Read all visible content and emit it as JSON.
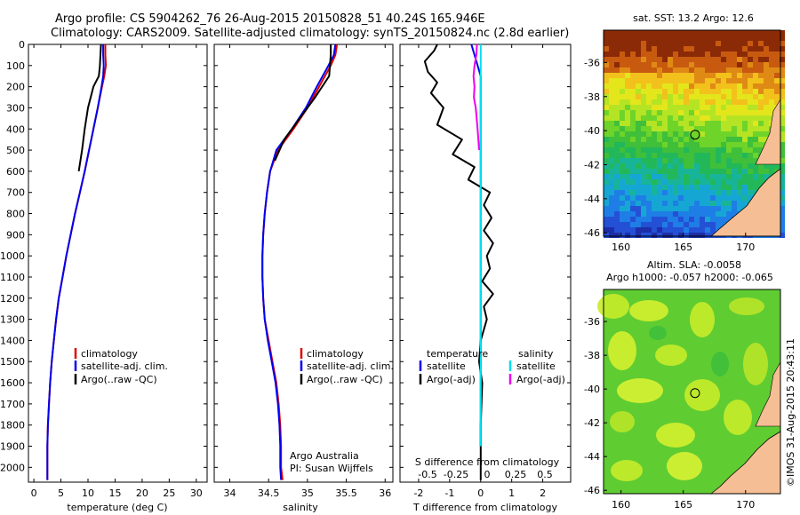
{
  "title": {
    "line1": "Argo profile: CS 5904262_76 26-Aug-2015 20150828_51 40.24S 165.946E",
    "line2": "Climatology: CARS2009. Satellite-adjusted climatology: synTS_20150824.nc (2.8d earlier)"
  },
  "credit": "©IMOS 31-Aug-2015 20:43:11",
  "legend_labels": {
    "climatology": "climatology",
    "satellite_adj": "satellite-adj. clim.",
    "argo": "Argo(..raw -QC)"
  },
  "diff_legend": {
    "temperature": "temperature",
    "salinity": "salinity",
    "satellite": "satellite",
    "argo_adj": "Argo(-adj)"
  },
  "owner": {
    "org": "Argo Australia",
    "pi": "PI: Susan Wijffels"
  },
  "colors": {
    "climatology": "#dd0000",
    "satellite": "#0000ee",
    "argo": "#000000",
    "sal_sat": "#00e0ee",
    "sal_argo": "#ee00ee"
  },
  "chart_data": [
    {
      "type": "line",
      "xlabel": "temperature (deg C)",
      "xlim": [
        -1,
        32
      ],
      "xticks": [
        0,
        5,
        10,
        15,
        20,
        25,
        30
      ],
      "ylim": [
        2070,
        0
      ],
      "yticks": [
        0,
        100,
        200,
        300,
        400,
        500,
        600,
        700,
        800,
        900,
        1000,
        1100,
        1200,
        1300,
        1400,
        1500,
        1600,
        1700,
        1800,
        1900,
        2000
      ],
      "series": [
        {
          "name": "climatology",
          "color": "#dd0000",
          "x": [
            13.2,
            13.2,
            13.3,
            13.0,
            12.6,
            11.8,
            11.0,
            10.2,
            9.4,
            8.5,
            7.6,
            6.8,
            6.0,
            5.3,
            4.6,
            4.1,
            3.7,
            3.3,
            3.0,
            2.8,
            2.6,
            2.5,
            2.5
          ],
          "y": [
            0,
            50,
            100,
            150,
            200,
            300,
            400,
            500,
            600,
            700,
            800,
            900,
            1000,
            1100,
            1200,
            1300,
            1400,
            1500,
            1600,
            1700,
            1800,
            1900,
            2060
          ]
        },
        {
          "name": "satellite-adj. clim.",
          "color": "#0000ee",
          "x": [
            12.8,
            12.8,
            12.9,
            12.8,
            12.5,
            11.8,
            11.0,
            10.2,
            9.4,
            8.5,
            7.6,
            6.8,
            6.0,
            5.3,
            4.6,
            4.1,
            3.7,
            3.3,
            3.0,
            2.8,
            2.6,
            2.5,
            2.5
          ],
          "y": [
            0,
            50,
            100,
            150,
            200,
            300,
            400,
            500,
            600,
            700,
            800,
            900,
            1000,
            1100,
            1200,
            1300,
            1400,
            1500,
            1600,
            1700,
            1800,
            1900,
            2060
          ]
        },
        {
          "name": "Argo(..raw -QC)",
          "color": "#000000",
          "x": [
            12.4,
            12.3,
            12.2,
            12.0,
            11.0,
            10.0,
            9.4,
            8.9,
            8.3
          ],
          "y": [
            0,
            50,
            100,
            150,
            200,
            300,
            400,
            500,
            600
          ]
        }
      ]
    },
    {
      "type": "line",
      "xlabel": "salinity",
      "xlim": [
        33.8,
        36.1
      ],
      "xticks": [
        34,
        34.5,
        35,
        35.5,
        36
      ],
      "ylim": [
        2070,
        0
      ],
      "series": [
        {
          "name": "climatology",
          "color": "#dd0000",
          "x": [
            35.38,
            35.36,
            35.3,
            35.15,
            35.0,
            34.82,
            34.62,
            34.52,
            34.48,
            34.45,
            34.43,
            34.42,
            34.42,
            34.43,
            34.45,
            34.5,
            34.55,
            34.6,
            34.63,
            34.65,
            34.66,
            34.66,
            34.68
          ],
          "y": [
            0,
            50,
            100,
            200,
            300,
            400,
            500,
            600,
            700,
            800,
            900,
            1000,
            1100,
            1200,
            1300,
            1400,
            1500,
            1600,
            1700,
            1800,
            1900,
            2000,
            2060
          ]
        },
        {
          "name": "satellite-adj. clim.",
          "color": "#0000ee",
          "x": [
            35.36,
            35.34,
            35.27,
            35.12,
            34.98,
            34.8,
            34.6,
            34.52,
            34.48,
            34.45,
            34.43,
            34.42,
            34.42,
            34.43,
            34.45,
            34.49,
            34.54,
            34.59,
            34.62,
            34.64,
            34.65,
            34.65,
            34.66
          ],
          "y": [
            0,
            50,
            100,
            200,
            300,
            400,
            500,
            600,
            700,
            800,
            900,
            1000,
            1100,
            1200,
            1300,
            1400,
            1500,
            1600,
            1700,
            1800,
            1900,
            2000,
            2060
          ]
        },
        {
          "name": "Argo(..raw -QC)",
          "color": "#000000",
          "x": [
            35.3,
            35.3,
            35.28,
            35.1,
            34.9,
            34.7,
            34.58
          ],
          "y": [
            0,
            50,
            150,
            250,
            350,
            450,
            550
          ]
        }
      ]
    },
    {
      "type": "line",
      "xlabel": "T difference from climatology",
      "xlabel_top": "S difference from climatology",
      "xlim": [
        -2.6,
        2.9
      ],
      "xticks": [
        -2,
        -1,
        0,
        1,
        2
      ],
      "xticks_top": [
        "-0.5",
        "-0.25",
        "0",
        "0.25",
        "0.5"
      ],
      "ylim": [
        2070,
        0
      ],
      "series": [
        {
          "name": "temperature satellite",
          "color": "#0000ee",
          "x": [
            -0.3,
            -0.2,
            -0.1,
            0,
            0,
            0,
            0,
            0,
            0,
            0,
            0,
            0,
            0,
            0,
            0,
            0,
            0,
            0,
            0,
            0,
            0,
            0
          ],
          "y": [
            0,
            50,
            100,
            150,
            200,
            300,
            400,
            500,
            600,
            700,
            800,
            900,
            1000,
            1100,
            1200,
            1300,
            1400,
            1500,
            1600,
            1700,
            1800,
            1900
          ]
        },
        {
          "name": "temperature Argo(-adj)",
          "color": "#000000",
          "x": [
            -1.4,
            -1.5,
            -1.8,
            -1.7,
            -1.4,
            -1.6,
            -1.2,
            -1.4,
            -0.6,
            -0.9,
            -0.2,
            -0.4,
            0.3,
            0.1,
            0.35,
            0.1,
            0.4,
            0.2,
            0.3,
            0.05,
            0.4,
            0.1,
            0.2,
            0,
            -0.05,
            0.05,
            0,
            0
          ],
          "y": [
            0,
            30,
            80,
            130,
            180,
            230,
            300,
            380,
            450,
            520,
            580,
            640,
            700,
            760,
            820,
            880,
            940,
            1000,
            1060,
            1120,
            1180,
            1240,
            1300,
            1400,
            1500,
            1600,
            1800,
            2060
          ]
        },
        {
          "name": "salinity satellite",
          "color": "#00e0ee",
          "x": [
            0,
            0,
            0,
            0,
            0,
            0,
            0,
            0,
            0,
            0,
            0,
            0,
            0,
            0,
            0,
            0,
            0,
            0,
            0,
            0,
            0,
            0
          ],
          "y": [
            0,
            50,
            100,
            150,
            200,
            300,
            400,
            500,
            600,
            700,
            800,
            900,
            1000,
            1100,
            1200,
            1300,
            1400,
            1500,
            1600,
            1700,
            1800,
            1900
          ]
        },
        {
          "name": "salinity Argo(-adj)",
          "color": "#ee00ee",
          "x": [
            -0.12,
            -0.14,
            -0.2,
            -0.23,
            -0.2,
            -0.22,
            -0.16,
            -0.1,
            -0.05
          ],
          "y": [
            0,
            50,
            100,
            150,
            200,
            250,
            300,
            400,
            500
          ]
        }
      ]
    },
    {
      "type": "heatmap",
      "title": "sat. SST: 13.2  Argo: 12.6",
      "xticks": [
        160,
        165,
        170
      ],
      "yticks": [
        -36,
        -38,
        -40,
        -42,
        -44,
        -46
      ],
      "xlim": [
        158.6,
        172.8
      ],
      "ylim": [
        -46.2,
        -34.1
      ],
      "marker": {
        "lon": 165.946,
        "lat": -40.24
      }
    },
    {
      "type": "heatmap",
      "title": "Altim. SLA: -0.0058",
      "subtitle": "Argo h1000: -0.057  h2000: -0.065",
      "xticks": [
        160,
        165,
        170
      ],
      "yticks": [
        -36,
        -38,
        -40,
        -42,
        -44,
        -46
      ],
      "xlim": [
        158.6,
        172.8
      ],
      "ylim": [
        -46.2,
        -34.1
      ],
      "marker": {
        "lon": 165.946,
        "lat": -40.24
      }
    }
  ]
}
